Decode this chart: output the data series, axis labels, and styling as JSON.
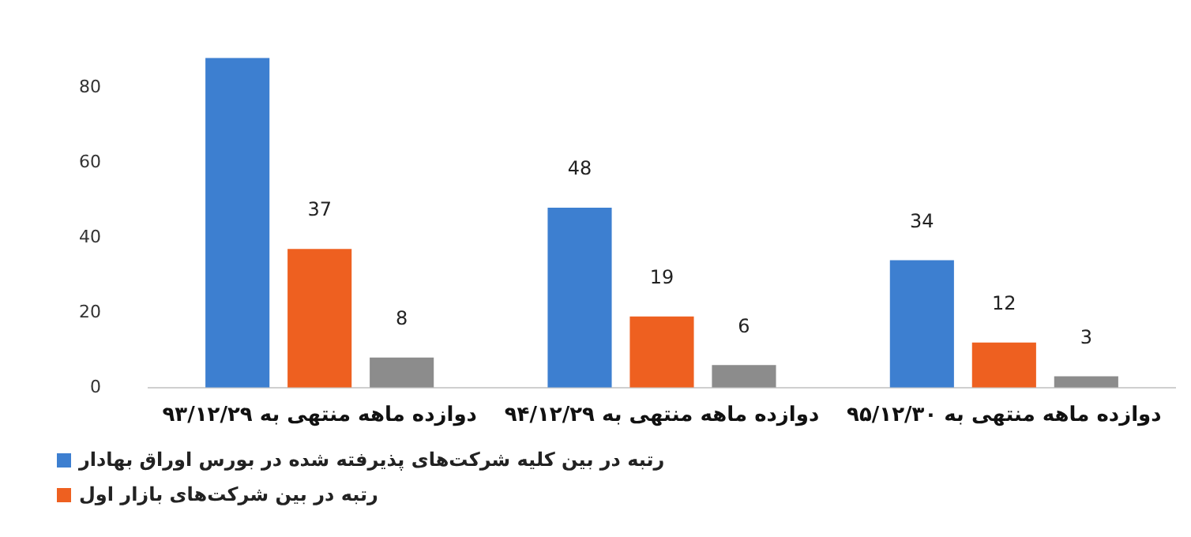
{
  "chart_data": {
    "type": "bar",
    "categories": [
      "دوازده ماهه منتهی به ۹۳/۱۲/۲۹",
      "دوازده ماهه منتهی به ۹۴/۱۲/۲۹",
      "دوازده ماهه منتهی به ۹۵/۱۲/۳۰"
    ],
    "series": [
      {
        "name": "رتبه در بین کلیه شرکت‌های پذیرفته شده در بورس اوراق بهادار",
        "color": "#3d7fd0",
        "values": [
          88,
          48,
          34
        ],
        "value_labels": [
          null,
          "48",
          "34"
        ]
      },
      {
        "name": "رتبه در بین شرکت‌های بازار اول",
        "color": "#ee6020",
        "values": [
          37,
          19,
          12
        ],
        "value_labels": [
          "37",
          "19",
          "12"
        ]
      },
      {
        "color": "#8c8c8c",
        "values": [
          8,
          6,
          3
        ],
        "value_labels": [
          "8",
          "6",
          "3"
        ]
      }
    ],
    "ylim": [
      0,
      88
    ],
    "yticks": [
      0,
      20,
      40,
      60,
      80
    ],
    "grid": false,
    "legend": "bottom left"
  }
}
